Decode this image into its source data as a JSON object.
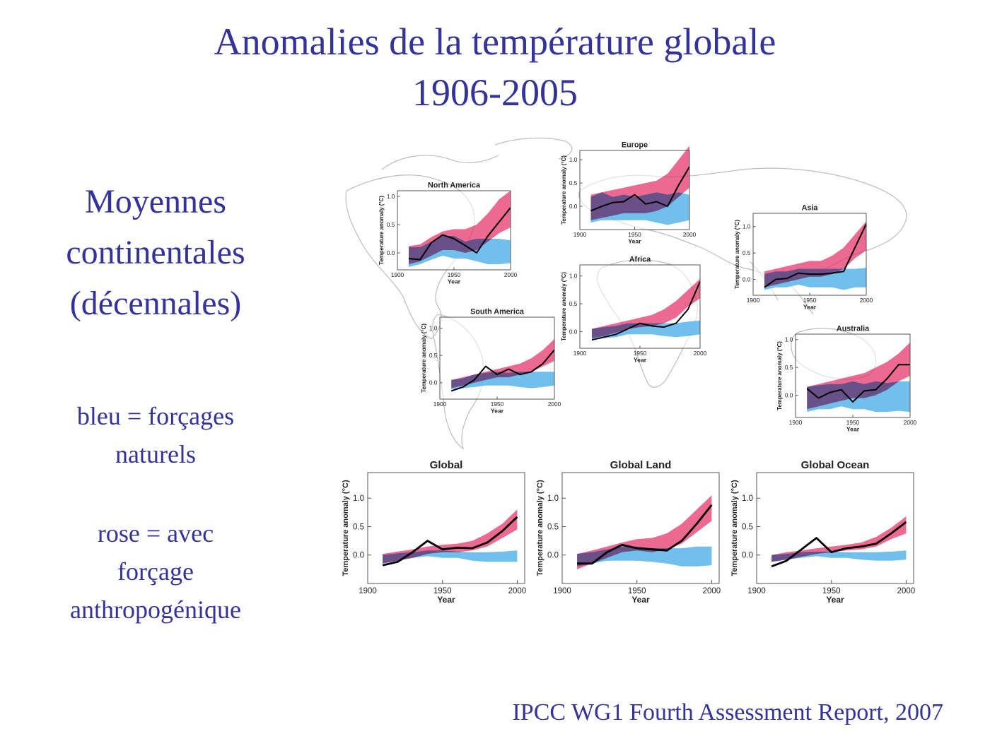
{
  "slide": {
    "title_line1": "Anomalies de la température globale",
    "title_line2": "1906-2005",
    "side_main": [
      "Moyennes",
      "continentales",
      "(décennales)"
    ],
    "legend_blue": [
      "bleu = forçages",
      "naturels"
    ],
    "legend_pink": [
      "rose = avec",
      "forçage",
      "anthropogénique"
    ],
    "source": "IPCC WG1 Fourth Assessment Report, 2007"
  },
  "colors": {
    "text": "#33339a",
    "natural_band": "#58b4ea",
    "anthropogenic_band": "#e8497a",
    "overlap": "#6a3f92",
    "observed": "#000000",
    "map_outline": "#b8b8b8"
  },
  "chart_data": [
    {
      "type": "area",
      "title": "North America",
      "xlabel": "Year",
      "ylabel": "Temperature anomaly (°C)",
      "xlim": [
        1900,
        2000
      ],
      "ylim": [
        -0.3,
        1.1
      ],
      "xticks": [
        "1900",
        "1950",
        "2000"
      ],
      "yticks": [
        "0.0",
        "0.5",
        "1.0"
      ],
      "x": [
        1910,
        1920,
        1930,
        1940,
        1950,
        1960,
        1970,
        1980,
        1990,
        2000
      ],
      "observed": [
        -0.1,
        -0.12,
        0.18,
        0.32,
        0.25,
        0.13,
        0.0,
        0.3,
        0.55,
        0.8
      ],
      "natural": {
        "lower": [
          -0.25,
          -0.2,
          -0.12,
          -0.05,
          -0.1,
          -0.1,
          -0.15,
          -0.2,
          -0.2,
          -0.18
        ],
        "upper": [
          0.1,
          0.1,
          0.2,
          0.3,
          0.3,
          0.2,
          0.25,
          0.25,
          0.25,
          0.22
        ]
      },
      "anthropogenic": {
        "lower": [
          -0.2,
          -0.15,
          -0.05,
          0.05,
          0.05,
          0.0,
          0.05,
          0.2,
          0.35,
          0.45
        ],
        "upper": [
          0.12,
          0.15,
          0.28,
          0.38,
          0.42,
          0.42,
          0.5,
          0.7,
          0.95,
          1.1
        ]
      }
    },
    {
      "type": "area",
      "title": "Europe",
      "xlabel": "Year",
      "ylabel": "Temperature anomaly (°C)",
      "xlim": [
        1900,
        2000
      ],
      "ylim": [
        -0.5,
        1.2
      ],
      "xticks": [
        "1900",
        "1950",
        "2000"
      ],
      "yticks": [
        "0.0",
        "0.5",
        "1.0"
      ],
      "x": [
        1910,
        1920,
        1930,
        1940,
        1950,
        1960,
        1970,
        1980,
        1990,
        2000
      ],
      "observed": [
        -0.1,
        0.0,
        0.08,
        0.1,
        0.25,
        0.05,
        0.1,
        0.0,
        0.45,
        0.85
      ],
      "natural": {
        "lower": [
          -0.35,
          -0.3,
          -0.3,
          -0.3,
          -0.3,
          -0.3,
          -0.35,
          -0.4,
          -0.35,
          -0.3
        ],
        "upper": [
          0.2,
          0.3,
          0.2,
          0.25,
          0.2,
          0.25,
          0.3,
          0.25,
          0.3,
          0.25
        ]
      },
      "anthropogenic": {
        "lower": [
          -0.3,
          -0.25,
          -0.2,
          -0.15,
          -0.15,
          -0.15,
          -0.1,
          0.0,
          0.2,
          0.4
        ],
        "upper": [
          0.25,
          0.3,
          0.35,
          0.4,
          0.45,
          0.5,
          0.55,
          0.7,
          1.0,
          1.3
        ]
      }
    },
    {
      "type": "area",
      "title": "Asia",
      "xlabel": "Year",
      "ylabel": "Temperature anomaly (°C)",
      "xlim": [
        1900,
        2000
      ],
      "ylim": [
        -0.3,
        1.25
      ],
      "xticks": [
        "1900",
        "1950",
        "2000"
      ],
      "yticks": [
        "0.0",
        "0.5",
        "1.0"
      ],
      "x": [
        1910,
        1920,
        1930,
        1940,
        1950,
        1960,
        1970,
        1980,
        1990,
        2000
      ],
      "observed": [
        -0.15,
        0.0,
        0.02,
        0.12,
        0.1,
        0.1,
        0.12,
        0.15,
        0.6,
        1.05
      ],
      "natural": {
        "lower": [
          -0.2,
          -0.15,
          -0.15,
          -0.1,
          -0.15,
          -0.15,
          -0.15,
          -0.2,
          -0.15,
          -0.15
        ],
        "upper": [
          0.1,
          0.15,
          0.15,
          0.2,
          0.2,
          0.2,
          0.2,
          0.2,
          0.2,
          0.22
        ]
      },
      "anthropogenic": {
        "lower": [
          -0.15,
          -0.1,
          -0.05,
          0.0,
          0.05,
          0.05,
          0.1,
          0.2,
          0.4,
          0.55
        ],
        "upper": [
          0.15,
          0.2,
          0.25,
          0.3,
          0.35,
          0.35,
          0.45,
          0.6,
          0.85,
          1.1
        ]
      }
    },
    {
      "type": "area",
      "title": "Africa",
      "xlabel": "Year",
      "ylabel": "Temperature anomaly (°C)",
      "xlim": [
        1900,
        2000
      ],
      "ylim": [
        -0.3,
        1.2
      ],
      "xticks": [
        "1900",
        "1950",
        "2000"
      ],
      "yticks": [
        "0.0",
        "0.5",
        "1.0"
      ],
      "x": [
        1910,
        1920,
        1930,
        1940,
        1950,
        1960,
        1970,
        1980,
        1990,
        2000
      ],
      "observed": [
        -0.15,
        -0.1,
        -0.05,
        0.05,
        0.15,
        0.1,
        0.08,
        0.15,
        0.4,
        0.9
      ],
      "natural": {
        "lower": [
          -0.15,
          -0.12,
          -0.1,
          -0.05,
          -0.05,
          -0.05,
          -0.08,
          -0.1,
          -0.08,
          -0.05
        ],
        "upper": [
          0.05,
          0.08,
          0.1,
          0.15,
          0.15,
          0.15,
          0.15,
          0.15,
          0.18,
          0.2
        ]
      },
      "anthropogenic": {
        "lower": [
          -0.12,
          -0.08,
          -0.02,
          0.05,
          0.08,
          0.1,
          0.15,
          0.25,
          0.45,
          0.6
        ],
        "upper": [
          0.05,
          0.1,
          0.15,
          0.2,
          0.25,
          0.3,
          0.4,
          0.55,
          0.75,
          0.95
        ]
      }
    },
    {
      "type": "area",
      "title": "South America",
      "xlabel": "Year",
      "ylabel": "Temperature anomaly (°C)",
      "xlim": [
        1900,
        2000
      ],
      "ylim": [
        -0.3,
        1.2
      ],
      "xticks": [
        "1900",
        "1950",
        "2000"
      ],
      "yticks": [
        "0.0",
        "0.5",
        "1.0"
      ],
      "x": [
        1910,
        1920,
        1930,
        1940,
        1950,
        1960,
        1970,
        1980,
        1990,
        2000
      ],
      "observed": [
        -0.15,
        -0.08,
        0.05,
        0.3,
        0.15,
        0.25,
        0.15,
        0.2,
        0.35,
        0.6
      ],
      "natural": {
        "lower": [
          -0.12,
          -0.1,
          -0.08,
          -0.05,
          -0.05,
          -0.05,
          -0.08,
          -0.1,
          -0.08,
          -0.05
        ],
        "upper": [
          0.05,
          0.08,
          0.15,
          0.18,
          0.2,
          0.18,
          0.2,
          0.2,
          0.2,
          0.2
        ]
      },
      "anthropogenic": {
        "lower": [
          -0.1,
          -0.05,
          0.0,
          0.05,
          0.1,
          0.1,
          0.15,
          0.2,
          0.3,
          0.4
        ],
        "upper": [
          0.05,
          0.1,
          0.15,
          0.2,
          0.25,
          0.3,
          0.35,
          0.45,
          0.6,
          0.8
        ]
      }
    },
    {
      "type": "area",
      "title": "Australia",
      "xlabel": "Year",
      "ylabel": "Temperature anomaly (°C)",
      "xlim": [
        1900,
        2000
      ],
      "ylim": [
        -0.4,
        1.1
      ],
      "xticks": [
        "1900",
        "1950",
        "2000"
      ],
      "yticks": [
        "0.0",
        "0.5",
        "1.0"
      ],
      "x": [
        1910,
        1920,
        1930,
        1940,
        1950,
        1960,
        1970,
        1980,
        1990,
        2000
      ],
      "observed": [
        0.12,
        -0.05,
        0.05,
        0.1,
        -0.12,
        0.08,
        0.1,
        0.3,
        0.55,
        0.55
      ],
      "natural": {
        "lower": [
          -0.3,
          -0.25,
          -0.25,
          -0.2,
          -0.25,
          -0.25,
          -0.3,
          -0.3,
          -0.28,
          -0.3
        ],
        "upper": [
          0.15,
          0.18,
          0.2,
          0.2,
          0.25,
          0.2,
          0.25,
          0.22,
          0.25,
          0.25
        ]
      },
      "anthropogenic": {
        "lower": [
          -0.25,
          -0.2,
          -0.15,
          -0.1,
          -0.05,
          -0.05,
          0.0,
          0.1,
          0.25,
          0.35
        ],
        "upper": [
          0.15,
          0.2,
          0.25,
          0.3,
          0.35,
          0.4,
          0.5,
          0.6,
          0.75,
          0.95
        ]
      }
    },
    {
      "type": "area",
      "title": "Global",
      "xlabel": "Year",
      "ylabel": "Temperature anomaly (°C)",
      "xlim": [
        1900,
        2005
      ],
      "ylim": [
        -0.5,
        1.45
      ],
      "xticks": [
        "1900",
        "1950",
        "2000"
      ],
      "yticks": [
        "0.0",
        "0.5",
        "1.0"
      ],
      "x": [
        1910,
        1920,
        1930,
        1940,
        1950,
        1960,
        1970,
        1980,
        1990,
        2000
      ],
      "observed": [
        -0.18,
        -0.12,
        0.05,
        0.25,
        0.1,
        0.13,
        0.12,
        0.22,
        0.42,
        0.67
      ],
      "natural": {
        "lower": [
          -0.15,
          -0.1,
          -0.05,
          -0.02,
          -0.05,
          -0.05,
          -0.1,
          -0.12,
          -0.12,
          -0.12
        ],
        "upper": [
          0.0,
          0.03,
          0.05,
          0.08,
          0.08,
          0.06,
          0.05,
          0.05,
          0.06,
          0.08
        ]
      },
      "anthropogenic": {
        "lower": [
          -0.15,
          -0.1,
          -0.05,
          0.02,
          0.05,
          0.05,
          0.08,
          0.15,
          0.3,
          0.45
        ],
        "upper": [
          0.02,
          0.06,
          0.1,
          0.15,
          0.18,
          0.2,
          0.25,
          0.38,
          0.55,
          0.8
        ]
      }
    },
    {
      "type": "area",
      "title": "Global Land",
      "xlabel": "Year",
      "ylabel": "Temperature anomaly (°C)",
      "xlim": [
        1900,
        2005
      ],
      "ylim": [
        -0.5,
        1.45
      ],
      "xticks": [
        "1900",
        "1950",
        "2000"
      ],
      "yticks": [
        "0.0",
        "0.5",
        "1.0"
      ],
      "x": [
        1910,
        1920,
        1930,
        1940,
        1950,
        1960,
        1970,
        1980,
        1990,
        2000
      ],
      "observed": [
        -0.15,
        -0.15,
        0.05,
        0.18,
        0.12,
        0.1,
        0.08,
        0.25,
        0.55,
        0.88
      ],
      "natural": {
        "lower": [
          -0.2,
          -0.15,
          -0.1,
          -0.1,
          -0.1,
          -0.12,
          -0.15,
          -0.2,
          -0.2,
          -0.18
        ],
        "upper": [
          0.02,
          0.05,
          0.1,
          0.15,
          0.15,
          0.12,
          0.12,
          0.12,
          0.15,
          0.15
        ]
      },
      "anthropogenic": {
        "lower": [
          -0.25,
          -0.15,
          -0.05,
          0.05,
          0.08,
          0.05,
          0.1,
          0.2,
          0.4,
          0.6
        ],
        "upper": [
          0.02,
          0.08,
          0.15,
          0.22,
          0.28,
          0.3,
          0.38,
          0.55,
          0.8,
          1.05
        ]
      }
    },
    {
      "type": "area",
      "title": "Global Ocean",
      "xlabel": "Year",
      "ylabel": "Temperature anomaly (°C)",
      "xlim": [
        1900,
        2005
      ],
      "ylim": [
        -0.5,
        1.45
      ],
      "xticks": [
        "1900",
        "1950",
        "2000"
      ],
      "yticks": [
        "0.0",
        "0.5",
        "1.0"
      ],
      "x": [
        1910,
        1920,
        1930,
        1940,
        1950,
        1960,
        1970,
        1980,
        1990,
        2000
      ],
      "observed": [
        -0.2,
        -0.1,
        0.1,
        0.3,
        0.05,
        0.12,
        0.15,
        0.2,
        0.38,
        0.58
      ],
      "natural": {
        "lower": [
          -0.12,
          -0.08,
          -0.05,
          -0.02,
          -0.05,
          -0.05,
          -0.08,
          -0.1,
          -0.1,
          -0.08
        ],
        "upper": [
          0.0,
          0.02,
          0.05,
          0.06,
          0.06,
          0.05,
          0.05,
          0.05,
          0.06,
          0.08
        ]
      },
      "anthropogenic": {
        "lower": [
          -0.12,
          -0.08,
          -0.03,
          0.02,
          0.05,
          0.08,
          0.1,
          0.15,
          0.28,
          0.38
        ],
        "upper": [
          0.0,
          0.05,
          0.08,
          0.12,
          0.15,
          0.18,
          0.22,
          0.32,
          0.48,
          0.68
        ]
      }
    }
  ]
}
